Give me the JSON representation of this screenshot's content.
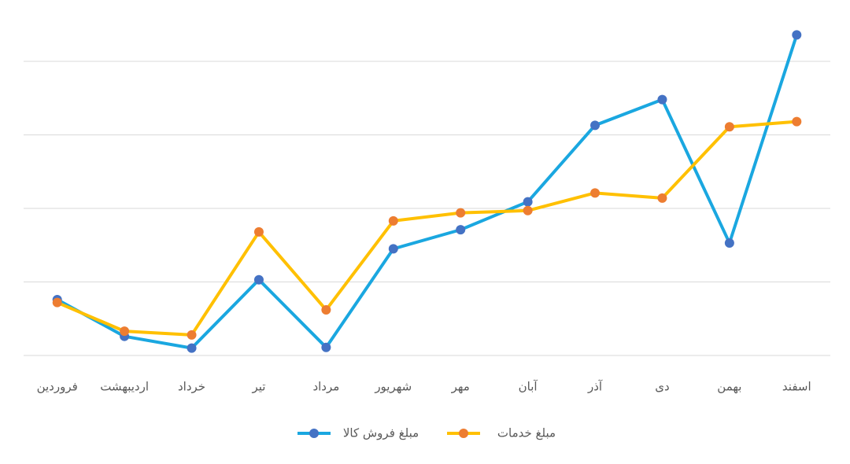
{
  "chart_data": {
    "type": "line",
    "categories": [
      "فروردین",
      "اردیبهشت",
      "خرداد",
      "تیر",
      "مرداد",
      "شهریور",
      "مهر",
      "آبان",
      "آذر",
      "دی",
      "بهمن",
      "اسفند"
    ],
    "series": [
      {
        "name": "مبلغ فروش کالا",
        "color": "#1aa7e0",
        "marker_color": "#4472c4",
        "values": [
          0.76,
          0.26,
          0.1,
          1.03,
          0.11,
          1.45,
          1.71,
          2.09,
          3.13,
          3.48,
          1.53,
          4.36
        ]
      },
      {
        "name": "مبلغ خدمات",
        "color": "#ffc000",
        "marker_color": "#ed7d31",
        "values": [
          0.72,
          0.33,
          0.28,
          1.68,
          0.62,
          1.83,
          1.94,
          1.97,
          2.21,
          2.14,
          3.11,
          3.18
        ]
      }
    ],
    "ylim": [
      0,
      4.5
    ],
    "yticks": [
      0,
      1,
      2,
      3,
      4
    ],
    "grid": true,
    "legend": "bottom"
  }
}
